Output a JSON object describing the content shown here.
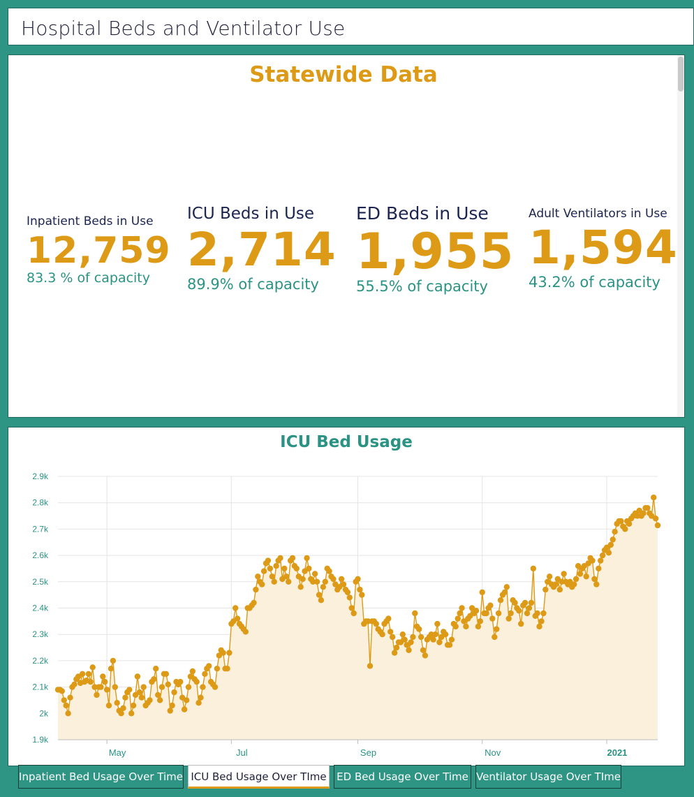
{
  "page": {
    "title": "Hospital Beds and Ventilator Use"
  },
  "stats": {
    "heading": "Statewide Data",
    "inpatient": {
      "label": "Inpatient Beds in Use",
      "value": "12,759",
      "capacity": "83.3 % of capacity"
    },
    "icu": {
      "label": "ICU Beds in Use",
      "value": "2,714",
      "capacity": "89.9% of capacity"
    },
    "ed": {
      "label": "ED Beds in Use",
      "value": "1,955",
      "capacity": "55.5% of capacity"
    },
    "vent": {
      "label": "Adult Ventilators in Use",
      "value": "1,594",
      "capacity": "43.2% of capacity"
    }
  },
  "colors": {
    "teal": "#2e9585",
    "gold": "#dd9a17",
    "navy": "#1c2450"
  },
  "tabs": [
    {
      "label": "Inpatient Bed Usage Over Time",
      "active": false
    },
    {
      "label": "ICU Bed Usage Over TIme",
      "active": true
    },
    {
      "label": "ED Bed Usage Over Time",
      "active": false
    },
    {
      "label": "Ventilator Usage Over TIme",
      "active": false
    }
  ],
  "chart_data": {
    "type": "area",
    "title": "ICU Bed Usage",
    "xlabel": "",
    "ylabel": "",
    "ylim": [
      1900,
      2900
    ],
    "yticks": [
      "1.9k",
      "2k",
      "2.1k",
      "2.2k",
      "2.3k",
      "2.4k",
      "2.5k",
      "2.6k",
      "2.7k",
      "2.8k",
      "2.9k"
    ],
    "xticks": [
      {
        "label": "May",
        "date": "2020-05-01",
        "bold": false
      },
      {
        "label": "Jul",
        "date": "2020-07-01",
        "bold": false
      },
      {
        "label": "Sep",
        "date": "2020-09-01",
        "bold": false
      },
      {
        "label": "Nov",
        "date": "2020-11-01",
        "bold": false
      },
      {
        "label": "2021",
        "date": "2021-01-01",
        "bold": true
      }
    ],
    "grid": true,
    "series": [
      {
        "x_start": "2020-04-07",
        "values": [
          2090,
          2090,
          2085,
          2050,
          2030,
          2000,
          2060,
          2100,
          2110,
          2130,
          2140,
          2115,
          2150,
          2120,
          2125,
          2150,
          2120,
          2175,
          2100,
          2070,
          2100,
          2100,
          2140,
          2120,
          2090,
          2030,
          2170,
          2200,
          2100,
          2040,
          2010,
          2000,
          2020,
          2060,
          2080,
          2090,
          2000,
          2030,
          2070,
          2140,
          2080,
          2060,
          2100,
          2030,
          2040,
          2050,
          2120,
          2130,
          2170,
          2070,
          2050,
          2100,
          2150,
          2150,
          2110,
          2010,
          2030,
          2080,
          2120,
          2110,
          2120,
          2060,
          2015,
          2050,
          2100,
          2140,
          2160,
          2130,
          2120,
          2040,
          2060,
          2100,
          2150,
          2170,
          2180,
          2120,
          2110,
          2100,
          2170,
          2220,
          2240,
          2230,
          2170,
          2170,
          2230,
          2340,
          2350,
          2400,
          2360,
          2340,
          2330,
          2320,
          2310,
          2400,
          2400,
          2410,
          2420,
          2470,
          2520,
          2500,
          2490,
          2540,
          2570,
          2580,
          2550,
          2520,
          2500,
          2560,
          2580,
          2590,
          2510,
          2550,
          2520,
          2500,
          2580,
          2590,
          2560,
          2550,
          2520,
          2480,
          2510,
          2540,
          2590,
          2550,
          2510,
          2500,
          2530,
          2500,
          2450,
          2430,
          2480,
          2500,
          2550,
          2540,
          2520,
          2510,
          2490,
          2470,
          2480,
          2510,
          2490,
          2470,
          2460,
          2440,
          2400,
          2380,
          2500,
          2510,
          2470,
          2450,
          2340,
          2350,
          2350,
          2180,
          2350,
          2350,
          2340,
          2320,
          2310,
          2300,
          2340,
          2350,
          2360,
          2310,
          2290,
          2230,
          2250,
          2270,
          2270,
          2300,
          2280,
          2260,
          2240,
          2270,
          2290,
          2380,
          2330,
          2320,
          2290,
          2240,
          2220,
          2280,
          2290,
          2300,
          2280,
          2300,
          2340,
          2270,
          2290,
          2310,
          2300,
          2260,
          2260,
          2280,
          2340,
          2330,
          2360,
          2380,
          2400,
          2350,
          2330,
          2360,
          2370,
          2400,
          2380,
          2390,
          2330,
          2350,
          2460,
          2380,
          2380,
          2400,
          2410,
          2360,
          2290,
          2320,
          2380,
          2430,
          2450,
          2460,
          2480,
          2360,
          2380,
          2430,
          2420,
          2400,
          2390,
          2340,
          2410,
          2420,
          2380,
          2400,
          2420,
          2550,
          2370,
          2380,
          2330,
          2350,
          2380,
          2470,
          2500,
          2520,
          2490,
          2480,
          2490,
          2510,
          2470,
          2500,
          2530,
          2500,
          2490,
          2500,
          2480,
          2490,
          2510,
          2560,
          2530,
          2550,
          2560,
          2520,
          2570,
          2590,
          2580,
          2510,
          2490,
          2550,
          2580,
          2600,
          2620,
          2630,
          2610,
          2640,
          2660,
          2690,
          2720,
          2730,
          2730,
          2710,
          2700,
          2730,
          2720,
          2740,
          2750,
          2760,
          2750,
          2770,
          2750,
          2760,
          2780,
          2780,
          2760,
          2750,
          2820,
          2740,
          2714
        ]
      }
    ]
  }
}
